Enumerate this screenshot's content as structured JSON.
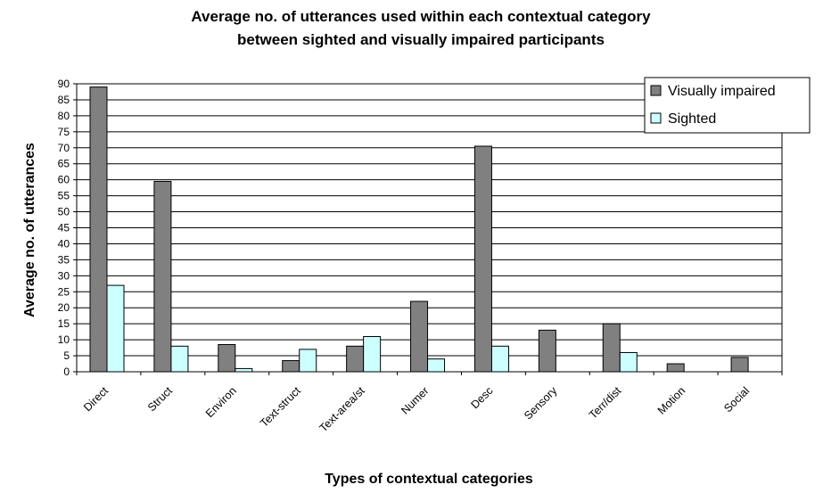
{
  "chart_data": {
    "type": "bar",
    "title_line1": "Average no. of utterances used within each contextual category",
    "title_line2": "between sighted and visually impaired participants",
    "xlabel": "Types of contextual categories",
    "ylabel": "Average no. of utterances",
    "ylim": [
      0,
      90
    ],
    "ytick_step": 5,
    "yticks": [
      "0",
      "5",
      "10",
      "15",
      "20",
      "25",
      "30",
      "35",
      "40",
      "45",
      "50",
      "55",
      "60",
      "65",
      "70",
      "75",
      "80",
      "85",
      "90"
    ],
    "grid": true,
    "legend_position": "top-right",
    "categories": [
      "Direct",
      "Struct",
      "Environ",
      "Text-struct",
      "Text-area/st",
      "Numer",
      "Desc",
      "Sensory",
      "Terr/dist",
      "Motion",
      "Social"
    ],
    "series": [
      {
        "name": "Visually impaired",
        "color": "#808080",
        "values": [
          89,
          59.5,
          8.5,
          3.5,
          8,
          22,
          70.5,
          13,
          15,
          2.5,
          4.5
        ]
      },
      {
        "name": "Sighted",
        "color": "#ccffff",
        "values": [
          27,
          8,
          1,
          7,
          11,
          4,
          8,
          0,
          6,
          0,
          0
        ]
      }
    ]
  }
}
